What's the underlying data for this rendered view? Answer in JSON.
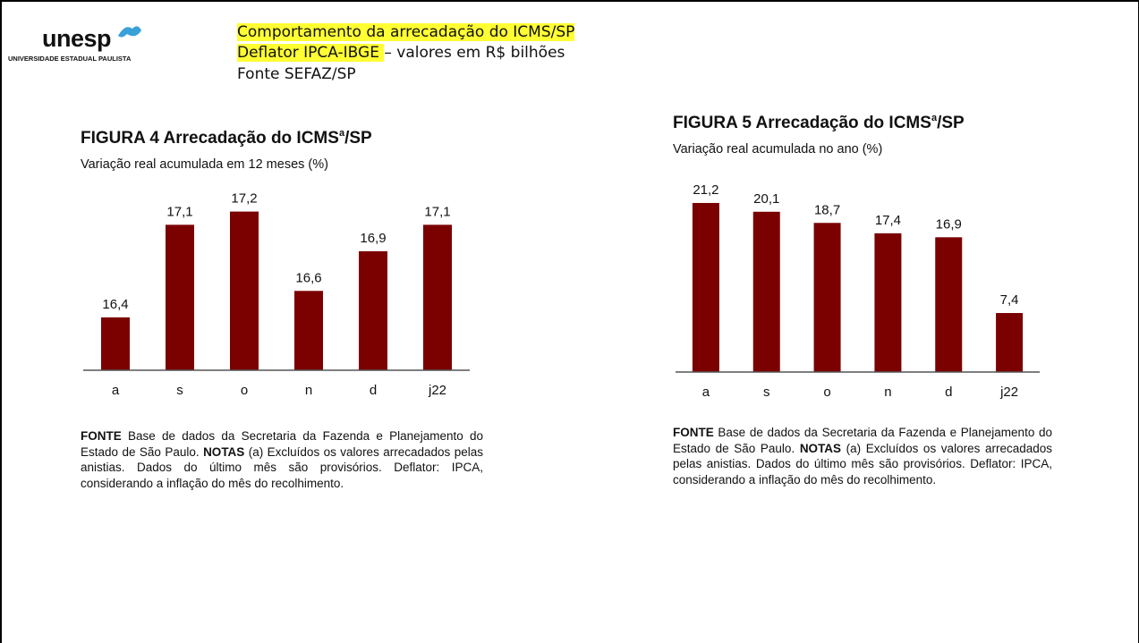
{
  "header": {
    "logo": "unesp",
    "logo_subtitle": "UNIVERSIDADE ESTADUAL PAULISTA",
    "line1": "Comportamento da arrecadação do ICMS/SP",
    "line2_highlight": "Deflator IPCA-IBGE ",
    "line2_rest": "– valores em R$ bilhões",
    "line3": "Fonte SEFAZ/SP"
  },
  "chart_data": [
    {
      "type": "bar",
      "title": "FIGURA 4 Arrecadação do ICMS",
      "title_superscript": "a",
      "title_end": "/SP",
      "subtitle": "Variação real acumulada em 12 meses (%)",
      "categories": [
        "a",
        "s",
        "o",
        "n",
        "d",
        "j22"
      ],
      "values": [
        16.4,
        17.1,
        17.2,
        16.6,
        16.9,
        17.1
      ],
      "value_labels": [
        "16,4",
        "17,1",
        "17,2",
        "16,6",
        "16,9",
        "17,1"
      ],
      "color": "#7b0000",
      "ylim": [
        16,
        17.4
      ],
      "note": {
        "source_label": "FONTE",
        "source": " Base de dados da Secretaria da Fazenda e Planejamento do Estado de São Paulo. ",
        "notes_label": "NOTAS",
        "notes": " (a) Excluídos os valores arrecadados pelas anistias. Dados do último mês são provisórios. Deflator: IPCA, considerando a inflação do mês do recolhimento."
      }
    },
    {
      "type": "bar",
      "title": "FIGURA 5 Arrecadação do ICMS",
      "title_superscript": "a",
      "title_end": "/SP",
      "subtitle": "Variação real acumulada no ano (%)",
      "categories": [
        "a",
        "s",
        "o",
        "n",
        "d",
        "j22"
      ],
      "values": [
        21.2,
        20.1,
        18.7,
        17.4,
        16.9,
        7.4
      ],
      "value_labels": [
        "21,2",
        "20,1",
        "18,7",
        "17,4",
        "16,9",
        "7,4"
      ],
      "color": "#7b0000",
      "ylim": [
        0,
        24
      ],
      "note": {
        "source_label": "FONTE",
        "source": " Base de dados da Secretaria da Fazenda e Planejamento do Estado de São Paulo. ",
        "notes_label": "NOTAS",
        "notes": " (a) Excluídos os valores arrecadados pelas anistias. Dados do último mês são provisórios. Deflator: IPCA, considerando a inflação do mês do recolhimento."
      }
    }
  ]
}
